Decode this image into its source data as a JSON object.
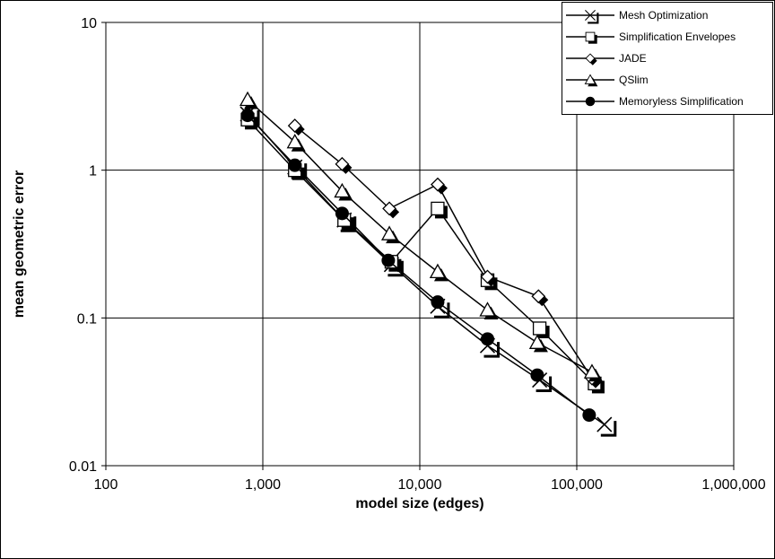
{
  "chart_data": {
    "type": "line",
    "xlabel": "model size (edges)",
    "ylabel": "mean geometric error",
    "xscale": "log",
    "yscale": "log",
    "xlim": [
      100,
      1000000
    ],
    "ylim": [
      0.01,
      10
    ],
    "xticks": [
      "100",
      "1,000",
      "10,000",
      "100,000",
      "1,000,000"
    ],
    "yticks": [
      "10",
      "1",
      "0.1",
      "0.01"
    ],
    "grid": true,
    "legend_position": "top-right",
    "series": [
      {
        "name": "Mesh Optimization",
        "marker": "x",
        "x": [
          800,
          1600,
          3300,
          6600,
          13000,
          27000,
          58000,
          150000
        ],
        "y": [
          2.4,
          1.05,
          0.46,
          0.23,
          0.12,
          0.065,
          0.038,
          0.019
        ]
      },
      {
        "name": "Simplification Envelopes",
        "marker": "square",
        "x": [
          800,
          1600,
          3300,
          6600,
          13000,
          27000,
          58000,
          130000
        ],
        "y": [
          2.2,
          1.0,
          0.46,
          0.24,
          0.55,
          0.18,
          0.085,
          0.036
        ]
      },
      {
        "name": "JADE",
        "marker": "diamond",
        "x": [
          1600,
          3200,
          6400,
          13000,
          27000,
          57000,
          125000
        ],
        "y": [
          2.0,
          1.1,
          0.55,
          0.8,
          0.19,
          0.14,
          0.039
        ]
      },
      {
        "name": "QSlim",
        "marker": "triangle",
        "x": [
          800,
          1600,
          3200,
          6400,
          13000,
          27000,
          56000,
          125000
        ],
        "y": [
          3.0,
          1.55,
          0.72,
          0.37,
          0.205,
          0.113,
          0.068,
          0.043
        ]
      },
      {
        "name": "Memoryless Simplification",
        "marker": "circle",
        "x": [
          800,
          1600,
          3200,
          6300,
          13000,
          27000,
          56000,
          120000
        ],
        "y": [
          2.35,
          1.08,
          0.51,
          0.245,
          0.128,
          0.072,
          0.041,
          0.022
        ]
      }
    ]
  }
}
